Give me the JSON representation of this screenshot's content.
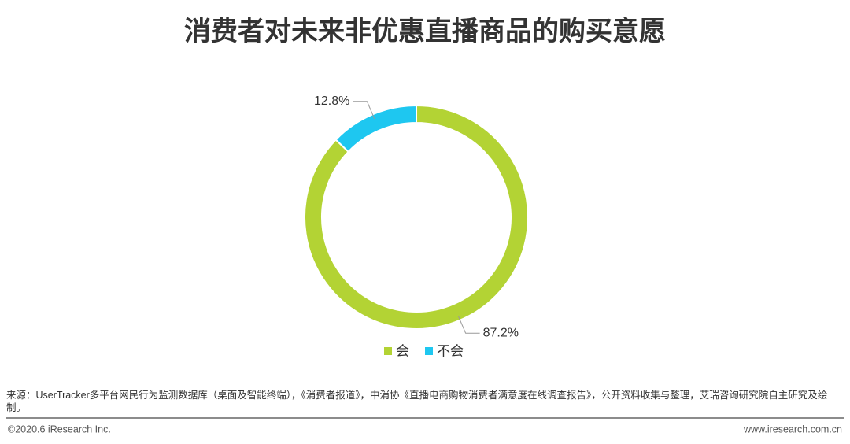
{
  "chart_data": {
    "type": "donut",
    "title": "消费者对未来非优惠直播商品的购买意愿",
    "categories": [
      "会",
      "不会"
    ],
    "values": [
      87.2,
      12.8
    ],
    "value_labels": [
      "87.2%",
      "12.8%"
    ],
    "colors": [
      "#b3d334",
      "#1ec7f0"
    ]
  },
  "footer": {
    "source": "来源：UserTracker多平台网民行为监测数据库（桌面及智能终端），《消费者报道》，中消协《直播电商购物消费者满意度在线调查报告》，公开资料收集与整理，艾瑞咨询研究院自主研究及绘制。",
    "copyright": "©2020.6 iResearch Inc.",
    "website": "www.iresearch.com.cn"
  }
}
